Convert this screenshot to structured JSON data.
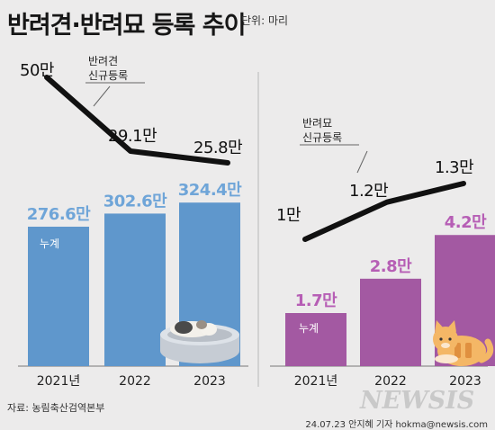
{
  "header": {
    "title": "반려견·반려묘 등록 추이",
    "unit": "단위: 마리"
  },
  "footer": {
    "source": "자료: 농림축산검역본부",
    "credit": "24.07.23 안지혜 기자 hokma@newsis.com",
    "watermark": "NEWSIS"
  },
  "chart_data": [
    {
      "type": "bar",
      "title": "",
      "categories": [
        "2021년",
        "2022",
        "2023"
      ],
      "series": [
        {
          "name": "누계",
          "values": [
            276.6,
            302.6,
            324.4
          ],
          "value_labels": [
            "276.6만",
            "302.6만",
            "324.4만"
          ],
          "color": "#5f97cc",
          "label_color": "#6fa5d8"
        }
      ],
      "overlay_line": {
        "name": "반려견\n신규등록",
        "values": [
          50,
          29.1,
          25.8
        ],
        "value_labels": [
          "50만",
          "29.1만",
          "25.8만"
        ],
        "color": "#111111"
      },
      "illustration": "dog-in-bed"
    },
    {
      "type": "bar",
      "title": "",
      "categories": [
        "2021년",
        "2022",
        "2023"
      ],
      "series": [
        {
          "name": "누계",
          "values": [
            1.7,
            2.8,
            4.2
          ],
          "value_labels": [
            "1.7만",
            "2.8만",
            "4.2만"
          ],
          "color": "#a359a2",
          "label_color": "#b65eb5"
        }
      ],
      "overlay_line": {
        "name": "반려묘\n신규등록",
        "values": [
          1,
          1.2,
          1.3
        ],
        "value_labels": [
          "1만",
          "1.2만",
          "1.3만"
        ],
        "color": "#111111"
      },
      "illustration": "orange-cat"
    }
  ]
}
